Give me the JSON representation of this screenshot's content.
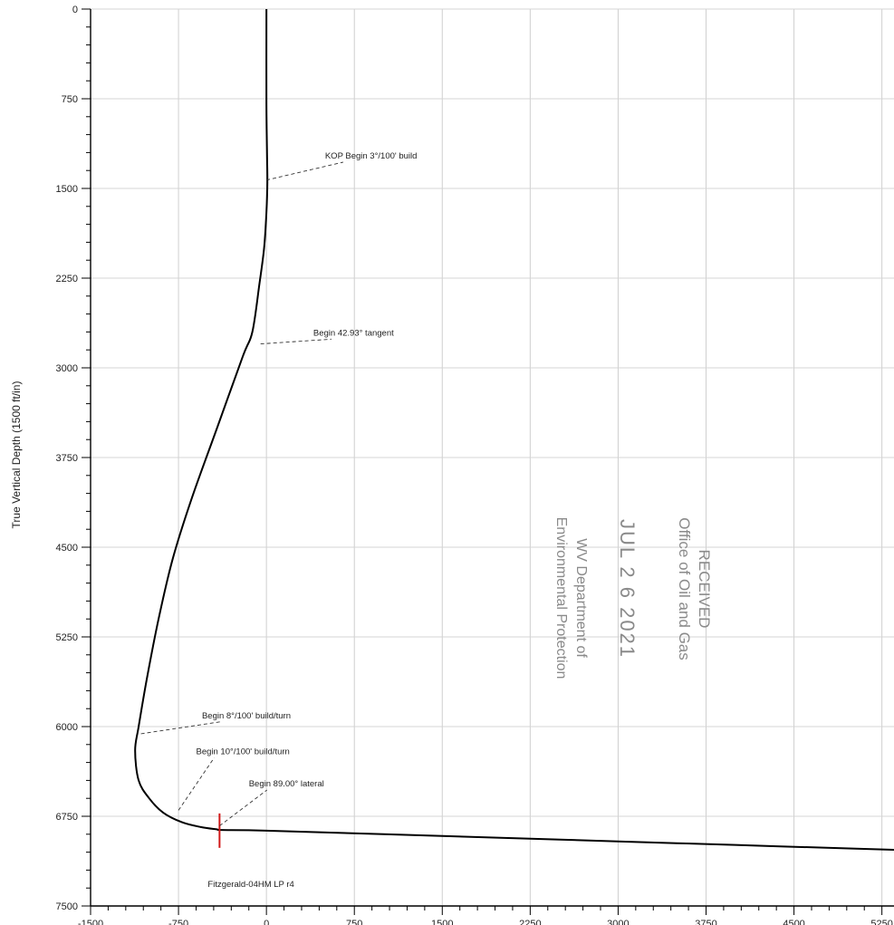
{
  "chart_data": {
    "type": "line",
    "ylabel": "True Vertical Depth (1500 ft/in)",
    "xlabel": "",
    "xlim": [
      -1500,
      5500
    ],
    "ylim": [
      0,
      7500
    ],
    "y_inverted": true,
    "grid": true,
    "x_ticks": [
      -1500,
      -750,
      0,
      750,
      1500,
      2250,
      3000,
      3750,
      4500,
      5250
    ],
    "x_tick_labels": [
      "-1500",
      "-750",
      "0",
      "750",
      "1500",
      "2250",
      "3000",
      "3750",
      "4500",
      "5250"
    ],
    "y_ticks": [
      0,
      750,
      1500,
      2250,
      3000,
      3750,
      4500,
      5250,
      6000,
      6750,
      7500
    ],
    "y_tick_labels": [
      "0",
      "750",
      "1500",
      "2250",
      "3000",
      "3750",
      "4500",
      "5250",
      "6000",
      "6750",
      "7500"
    ],
    "series": [
      {
        "color": "#000000",
        "x": [
          0,
          0,
          5,
          8,
          0,
          -20,
          -60,
          -120,
          -200,
          -420,
          -640,
          -800,
          -920,
          -1020,
          -1090,
          -1120,
          -1090,
          -1000,
          -880,
          -720,
          -560,
          -420,
          -380,
          0,
          1000,
          2000,
          3000,
          4000,
          5000,
          5500
        ],
        "y": [
          0,
          800,
          1200,
          1450,
          1700,
          2000,
          2300,
          2700,
          2900,
          3500,
          4100,
          4600,
          5100,
          5600,
          6000,
          6200,
          6450,
          6600,
          6720,
          6800,
          6840,
          6860,
          6865,
          6870,
          6900,
          6930,
          6960,
          6990,
          7020,
          7035
        ]
      }
    ],
    "landing_point_marker": {
      "x": -400,
      "y": 6870,
      "color": "#d01818"
    },
    "annotations": [
      {
        "text": "KOP Begin 3°/100' build",
        "x": 500,
        "y": 1250
      },
      {
        "text": "Begin 42.93° tangent",
        "x": 400,
        "y": 2730
      },
      {
        "text": "Begin 8°/100' build/turn",
        "x": -550,
        "y": 5930
      },
      {
        "text": "Begin 10°/100' build/turn",
        "x": -600,
        "y": 6230
      },
      {
        "text": "Begin 89.00° lateral",
        "x": -150,
        "y": 6500
      },
      {
        "text": "Fitzgerald-04HM LP r4",
        "x": -500,
        "y": 7340
      }
    ]
  },
  "stamp": {
    "line1": "RECEIVED",
    "line2": "Office of Oil and Gas",
    "date": "JUL 2 6 2021",
    "line3": "WV Department of",
    "line4": "Environmental Protection"
  }
}
